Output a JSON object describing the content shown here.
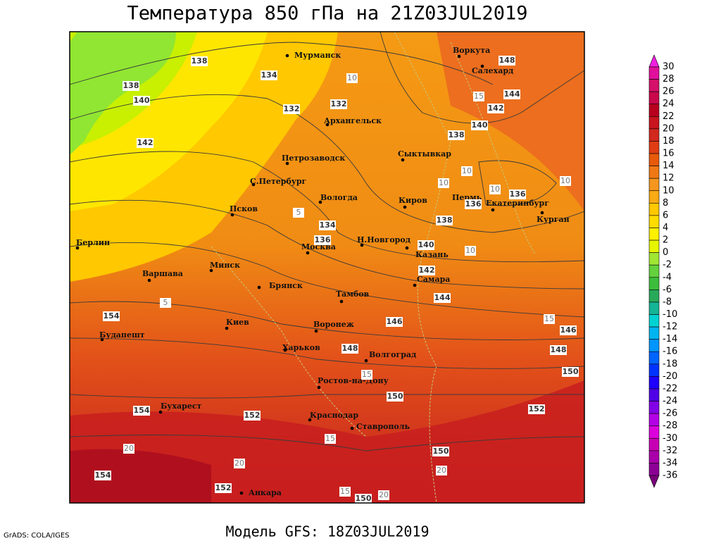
{
  "title": "Температура 850 гПа на 21Z03JUL2019",
  "subtitle": "Модель GFS: 18Z03JUL2019",
  "credit": "GrADS: COLA/IGES",
  "colorbar": {
    "levels": [
      30,
      28,
      26,
      24,
      22,
      20,
      18,
      16,
      14,
      12,
      10,
      8,
      6,
      4,
      2,
      0,
      -2,
      -4,
      -6,
      -8,
      -10,
      -12,
      -14,
      -16,
      -18,
      -20,
      -22,
      -24,
      -26,
      -28,
      -30,
      -32,
      -34,
      -36
    ],
    "colors": [
      "#f020e0",
      "#e0109c",
      "#d5106a",
      "#c8084a",
      "#b8001e",
      "#c8141e",
      "#d2281e",
      "#e03c14",
      "#e85a0a",
      "#f07814",
      "#f5961e",
      "#faaa14",
      "#ffc800",
      "#ffdc00",
      "#fff000",
      "#e6f500",
      "#a0e632",
      "#64d23c",
      "#3cbe3c",
      "#28aa5a",
      "#14b496",
      "#00d2d2",
      "#00b4f0",
      "#0096ff",
      "#0064ff",
      "#0032ff",
      "#1e00ff",
      "#5000e6",
      "#8200e6",
      "#b400e6",
      "#dc00dc",
      "#c800b4",
      "#aa00aa",
      "#8c0096",
      "#780078"
    ]
  },
  "cities": [
    "Мурманск",
    "Воркута",
    "Салехард",
    "Архангельск",
    "Петрозаводск",
    "Сыктывкар",
    "С.Петербург",
    "Вологда",
    "Киров",
    "Пермь",
    "Екатеринбург",
    "Курган",
    "Псков",
    "Москва",
    "Н.Новгород",
    "Казань",
    "Берлин",
    "Варшава",
    "Минск",
    "Брянск",
    "Тамбов",
    "Самара",
    "Киев",
    "Воронеж",
    "Будапешт",
    "Харьков",
    "Волгоград",
    "Ростов-на-Дону",
    "Бухарест",
    "Краснодар",
    "Ставрополь",
    "Анкара"
  ],
  "contour_labels": {
    "heights": [
      138,
      134,
      138,
      140,
      132,
      132,
      142,
      148,
      144,
      142,
      140,
      138,
      136,
      136,
      138,
      134,
      136,
      140,
      142,
      144,
      146,
      146,
      148,
      148,
      150,
      150,
      152,
      152,
      154,
      154,
      154,
      150,
      152,
      150
    ],
    "temperatures": [
      10,
      15,
      10,
      10,
      10,
      10,
      10,
      15,
      15,
      20,
      20,
      20,
      15,
      15,
      20,
      5,
      5
    ]
  }
}
